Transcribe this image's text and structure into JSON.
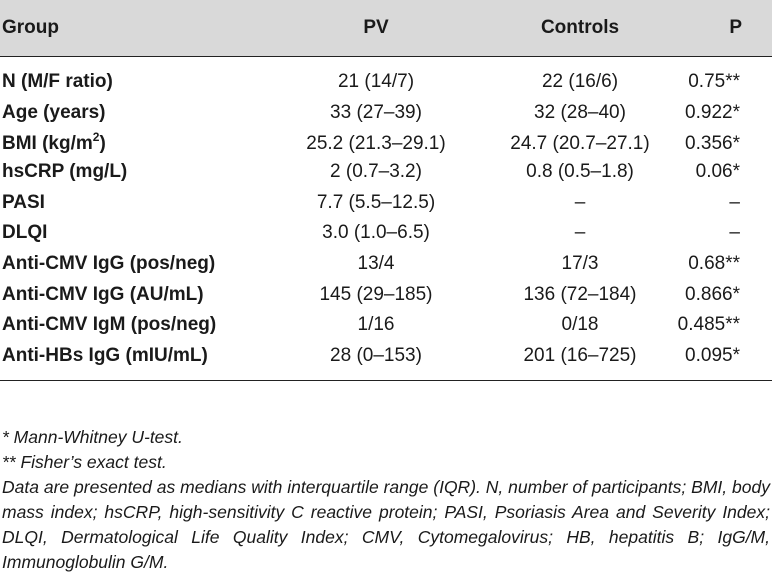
{
  "table": {
    "headers": {
      "group": "Group",
      "pv": "PV",
      "controls": "Controls",
      "p": "P"
    },
    "rows": [
      {
        "label": "N (M/F ratio)",
        "pv": "21 (14/7)",
        "controls": "22 (16/6)",
        "p": "0.75**"
      },
      {
        "label": "Age (years)",
        "pv": "33 (27–39)",
        "controls": "32 (28–40)",
        "p": "0.922*"
      },
      {
        "label_main": "BMI (kg/m",
        "label_sup": "2",
        "label_end": ")",
        "pv": "25.2 (21.3–29.1)",
        "controls": "24.7 (20.7–27.1)",
        "p": "0.356*"
      },
      {
        "label": "hsCRP (mg/L)",
        "pv": "2 (0.7–3.2)",
        "controls": "0.8 (0.5–1.8)",
        "p": "0.06*"
      },
      {
        "label": "PASI",
        "pv": "7.7 (5.5–12.5)",
        "controls": "–",
        "p": "–"
      },
      {
        "label": "DLQI",
        "pv": "3.0 (1.0–6.5)",
        "controls": "–",
        "p": "–"
      },
      {
        "label": "Anti-CMV IgG (pos/neg)",
        "pv": "13/4",
        "controls": "17/3",
        "p": "0.68**"
      },
      {
        "label": "Anti-CMV IgG (AU/mL)",
        "pv": "145 (29–185)",
        "controls": "136 (72–184)",
        "p": "0.866*"
      },
      {
        "label": "Anti-CMV IgM (pos/neg)",
        "pv": "1/16",
        "controls": "0/18",
        "p": "0.485**"
      },
      {
        "label": "Anti-HBs IgG (mIU/mL)",
        "pv": "28 (0–153)",
        "controls": "201 (16–725)",
        "p": "0.095*"
      }
    ]
  },
  "footnotes": {
    "mann_whitney": "* Mann-Whitney U-test.",
    "fisher": "** Fisher’s exact test.",
    "abbreviations": "Data are presented as medians with interquartile range (IQR). N, number of participants; BMI, body mass index; hsCRP, high-sensitivity C reactive protein; PASI, Psoriasis Area and Severity Index; DLQI, Dermatological Life Quality Index; CMV, Cytomegalovirus; HB, hepatitis B; IgG/M, Immunoglobulin G/M."
  }
}
